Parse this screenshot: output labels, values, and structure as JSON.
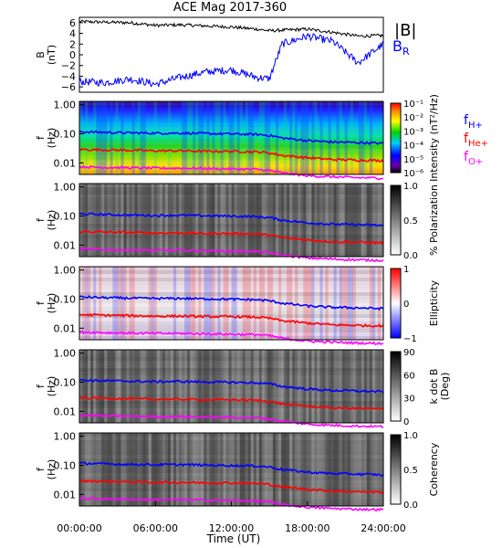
{
  "title": "ACE Mag 2017-360",
  "colors": {
    "fHplus": "#0000ff",
    "fHeplus": "#ff0000",
    "fOplus": "#ff00ff",
    "B_total": "#000000",
    "B_R": "#0000ff"
  },
  "x_axis": {
    "label": "Time (UT)",
    "ticks": [
      "00:00:00",
      "06:00:00",
      "12:00:00",
      "18:00:00",
      "24:00:00"
    ],
    "range_hours": [
      0,
      24
    ]
  },
  "gyro_labels": {
    "h_main": "f",
    "h_sub": "H+",
    "he_main": "f",
    "he_sub": "He+",
    "o_main": "f",
    "o_sub": "O+"
  },
  "panels": [
    {
      "id": "b-field",
      "ylabel": "B",
      "ylabel_unit": "(nT)",
      "yticks": [
        "6",
        "4",
        "2",
        "0",
        "−2",
        "−4",
        "−6"
      ],
      "yrange": [
        -7,
        7
      ],
      "legend": {
        "total": "|B|",
        "radial_main": "B",
        "radial_sub": "R"
      }
    },
    {
      "id": "intensity",
      "ylabel": "f",
      "ylabel_unit": "(Hz)",
      "yticks": [
        "1.00",
        "0.10",
        "0.01"
      ],
      "colorbar_label": "Intensity (nT²/Hz)",
      "colorbar_ticks": [
        "10⁻¹",
        "10⁻²",
        "10⁻³",
        "10⁻⁴",
        "10⁻⁵",
        "10⁻⁶"
      ]
    },
    {
      "id": "polarization",
      "ylabel": "f",
      "ylabel_unit": "(Hz)",
      "yticks": [
        "1.00",
        "0.10",
        "0.01"
      ],
      "colorbar_label": "% Polarization",
      "colorbar_ticks": [
        "1.0",
        "0.5",
        "0.0"
      ]
    },
    {
      "id": "ellipticity",
      "ylabel": "f",
      "ylabel_unit": "(Hz)",
      "yticks": [
        "1.00",
        "0.10",
        "0.01"
      ],
      "colorbar_label": "Ellipticity",
      "colorbar_ticks": [
        "1",
        "0",
        "−1"
      ]
    },
    {
      "id": "k-dot-b",
      "ylabel": "f",
      "ylabel_unit": "(Hz)",
      "yticks": [
        "1.00",
        "0.10",
        "0.01"
      ],
      "colorbar_label": "k dot B",
      "colorbar_label2": "(Deg)",
      "colorbar_ticks": [
        "90",
        "60",
        "30",
        "0"
      ]
    },
    {
      "id": "coherency",
      "ylabel": "f",
      "ylabel_unit": "(Hz)",
      "yticks": [
        "1.00",
        "0.10",
        "0.01"
      ],
      "colorbar_label": "Coherency",
      "colorbar_ticks": [
        "1.0",
        "0.5",
        "0.0"
      ]
    }
  ],
  "chart_data": {
    "type": "line",
    "title": "ACE Mag 2017-360",
    "xlabel": "Time (UT)",
    "x_hours": [
      0,
      2,
      4,
      6,
      8,
      10,
      12,
      14,
      15,
      16,
      18,
      20,
      22,
      24
    ],
    "series": [
      {
        "name": "|B|",
        "panel": "b-field",
        "values": [
          6.2,
          6.1,
          6.0,
          5.5,
          5.6,
          5.4,
          5.2,
          4.8,
          4.5,
          4.6,
          4.8,
          4.2,
          3.5,
          3.6
        ]
      },
      {
        "name": "B_R",
        "panel": "b-field",
        "values": [
          -5.0,
          -5.2,
          -4.5,
          -5.5,
          -4.2,
          -3.2,
          -2.8,
          -4.2,
          -4.5,
          2.0,
          3.5,
          2.5,
          -1.5,
          2.0
        ]
      },
      {
        "name": "f_H+",
        "panel": "spectrograms",
        "unit": "Hz",
        "values": [
          0.118,
          0.112,
          0.108,
          0.105,
          0.106,
          0.102,
          0.099,
          0.095,
          0.088,
          0.072,
          0.058,
          0.052,
          0.05,
          0.047
        ]
      },
      {
        "name": "f_He+",
        "panel": "spectrograms",
        "unit": "Hz",
        "values": [
          0.029,
          0.028,
          0.027,
          0.026,
          0.026,
          0.025,
          0.025,
          0.024,
          0.022,
          0.018,
          0.015,
          0.013,
          0.0125,
          0.012
        ]
      },
      {
        "name": "f_O+",
        "panel": "spectrograms",
        "unit": "Hz",
        "values": [
          0.0074,
          0.007,
          0.0068,
          0.0066,
          0.0066,
          0.0064,
          0.0062,
          0.006,
          0.0055,
          0.0045,
          0.0036,
          0.0033,
          0.0031,
          0.003
        ]
      }
    ],
    "spectrogram_yrange_hz": [
      0.004,
      1.3
    ]
  }
}
